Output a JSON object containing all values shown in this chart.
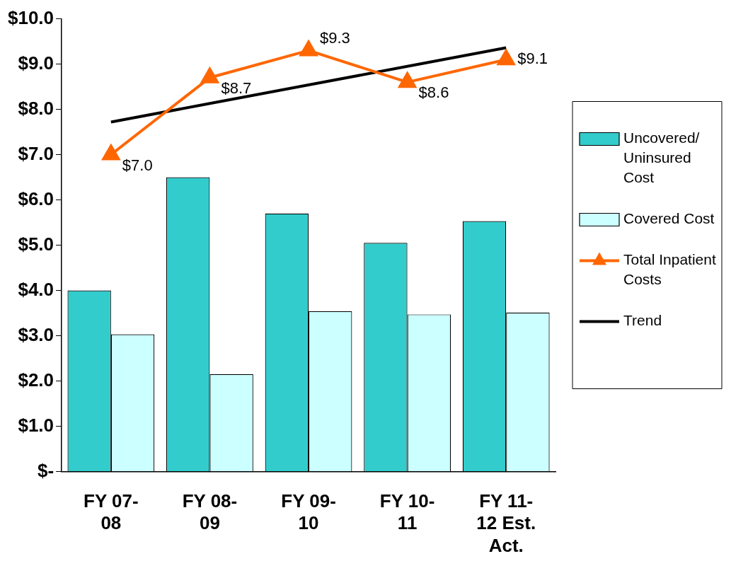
{
  "chart_data": {
    "type": "bar",
    "categories": [
      "FY 07-08",
      "FY 08-09",
      "FY 09-10",
      "FY 10-11",
      "FY 11-12 Est. Act."
    ],
    "series": [
      {
        "name": "Uncovered/ Uninsured Cost",
        "color": "#33cccc",
        "values": [
          4.0,
          6.5,
          5.7,
          5.05,
          5.53
        ]
      },
      {
        "name": "Covered Cost",
        "color": "#ccffff",
        "values": [
          3.03,
          2.15,
          3.54,
          3.47,
          3.51
        ]
      },
      {
        "name": "Total Inpatient Costs",
        "type": "line",
        "color": "#ff6600",
        "marker": "triangle",
        "values": [
          7.0,
          8.7,
          9.3,
          8.6,
          9.1
        ],
        "value_labels": [
          "$7.0",
          "$8.7",
          "$9.3",
          "$8.6",
          "$9.1"
        ]
      },
      {
        "name": "Trend",
        "type": "line",
        "color": "#000000",
        "marker": "none",
        "values": [
          7.72,
          8.13,
          8.54,
          8.95,
          9.36
        ]
      }
    ],
    "ylim": [
      0,
      10
    ],
    "yticks": [
      {
        "value": 0,
        "label": "$-"
      },
      {
        "value": 1,
        "label": "$1.0"
      },
      {
        "value": 2,
        "label": "$2.0"
      },
      {
        "value": 3,
        "label": "$3.0"
      },
      {
        "value": 4,
        "label": "$4.0"
      },
      {
        "value": 5,
        "label": "$5.0"
      },
      {
        "value": 6,
        "label": "$6.0"
      },
      {
        "value": 7,
        "label": "$7.0"
      },
      {
        "value": 8,
        "label": "$8.0"
      },
      {
        "value": 9,
        "label": "$9.0"
      },
      {
        "value": 10,
        "label": "$10.0"
      }
    ],
    "grid": false,
    "legend": "right"
  }
}
